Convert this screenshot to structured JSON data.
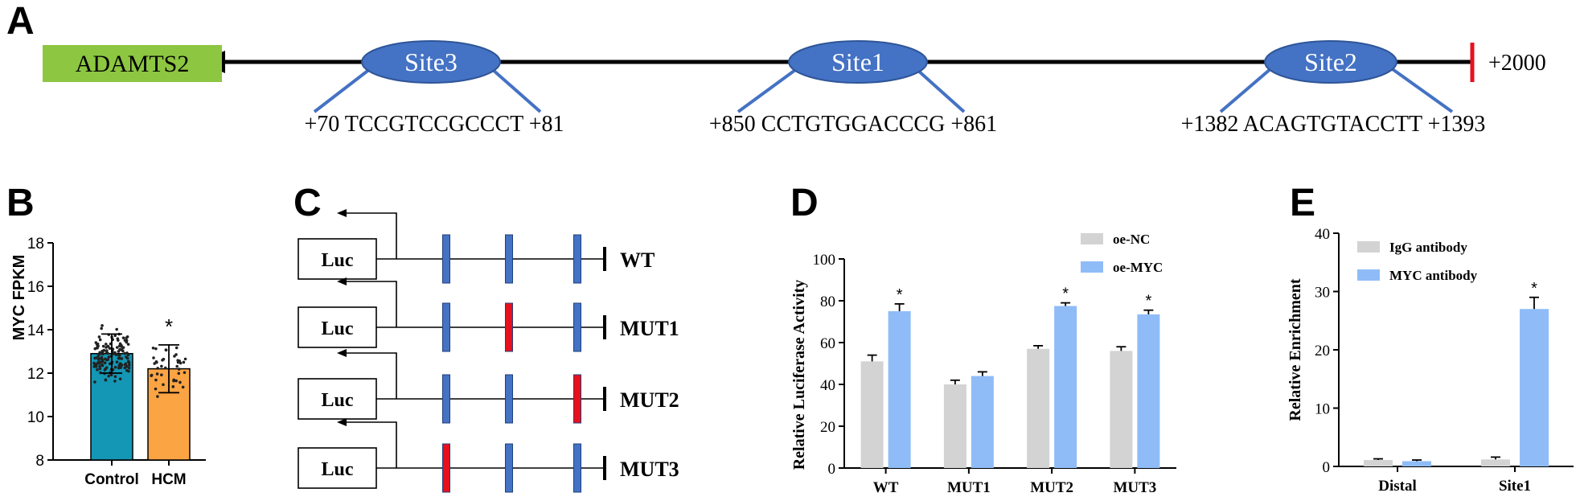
{
  "panels": {
    "a": {
      "letter": "A",
      "gene": "ADAMTS2",
      "end_label": "+2000",
      "sites": [
        {
          "name": "Site3",
          "start": "+70",
          "seq": "TCCGTCCGCCCT",
          "end": "+81"
        },
        {
          "name": "Site1",
          "start": "+850",
          "seq": "CCTGTGGACCCG",
          "end": "+861"
        },
        {
          "name": "Site2",
          "start": "+1382",
          "seq": "ACAGTGTACCTT",
          "end": "+1393"
        }
      ],
      "colors": {
        "gene_box": "#8dc641",
        "site": "#4472c4",
        "end_tick": "#e8101d"
      }
    },
    "b": {
      "letter": "B"
    },
    "c": {
      "letter": "C",
      "luc_label": "Luc",
      "constructs": [
        {
          "label": "WT",
          "mutated": [
            false,
            false,
            false
          ]
        },
        {
          "label": "MUT1",
          "mutated": [
            false,
            true,
            false
          ]
        },
        {
          "label": "MUT2",
          "mutated": [
            false,
            false,
            true
          ]
        },
        {
          "label": "MUT3",
          "mutated": [
            true,
            false,
            false
          ]
        }
      ],
      "colors": {
        "site": "#4472c4",
        "mutated": "#e8101d"
      }
    },
    "d": {
      "letter": "D"
    },
    "e": {
      "letter": "E"
    }
  },
  "chart_data": [
    {
      "panel": "B",
      "type": "bar",
      "categories": [
        "Control",
        "HCM"
      ],
      "values": [
        12.9,
        12.2
      ],
      "errors": [
        0.9,
        1.1
      ],
      "ylabel": "MYC FPKM",
      "ylim": [
        8,
        18
      ],
      "yticks": [
        8,
        10,
        12,
        14,
        16,
        18
      ],
      "significance": [
        "",
        "*"
      ],
      "scatter_overlay": true,
      "colors": [
        "#1497b4",
        "#fba444"
      ]
    },
    {
      "panel": "D",
      "type": "bar",
      "categories": [
        "WT",
        "MUT1",
        "MUT2",
        "MUT3"
      ],
      "series": [
        {
          "name": "oe-NC",
          "values": [
            51,
            40,
            57,
            56
          ],
          "errors": [
            3,
            2,
            1.5,
            2
          ],
          "color": "#d3d3d3"
        },
        {
          "name": "oe-MYC",
          "values": [
            75,
            44,
            77.5,
            73.5
          ],
          "errors": [
            3.5,
            2,
            1.5,
            2
          ],
          "color": "#8fbcf7"
        }
      ],
      "significance": [
        [
          "",
          "*"
        ],
        [
          "",
          ""
        ],
        [
          "",
          "*"
        ],
        [
          "",
          "*"
        ]
      ],
      "ylabel": "Relative Luciferase Activity",
      "ylim": [
        0,
        100
      ],
      "yticks": [
        0,
        20,
        40,
        60,
        80,
        100
      ],
      "legend": "top-right"
    },
    {
      "panel": "E",
      "type": "bar",
      "categories": [
        "Distal",
        "Site1"
      ],
      "series": [
        {
          "name": "IgG antibody",
          "values": [
            1.1,
            1.2
          ],
          "errors": [
            0.2,
            0.4
          ],
          "color": "#d3d3d3"
        },
        {
          "name": "MYC antibody",
          "values": [
            0.9,
            27
          ],
          "errors": [
            0.2,
            2
          ],
          "color": "#8fbcf7"
        }
      ],
      "significance": [
        [
          "",
          ""
        ],
        [
          "",
          "*"
        ]
      ],
      "ylabel": "Relative Enrichment",
      "ylim": [
        0,
        40
      ],
      "yticks": [
        0,
        10,
        20,
        30,
        40
      ],
      "legend": "top-left"
    }
  ]
}
